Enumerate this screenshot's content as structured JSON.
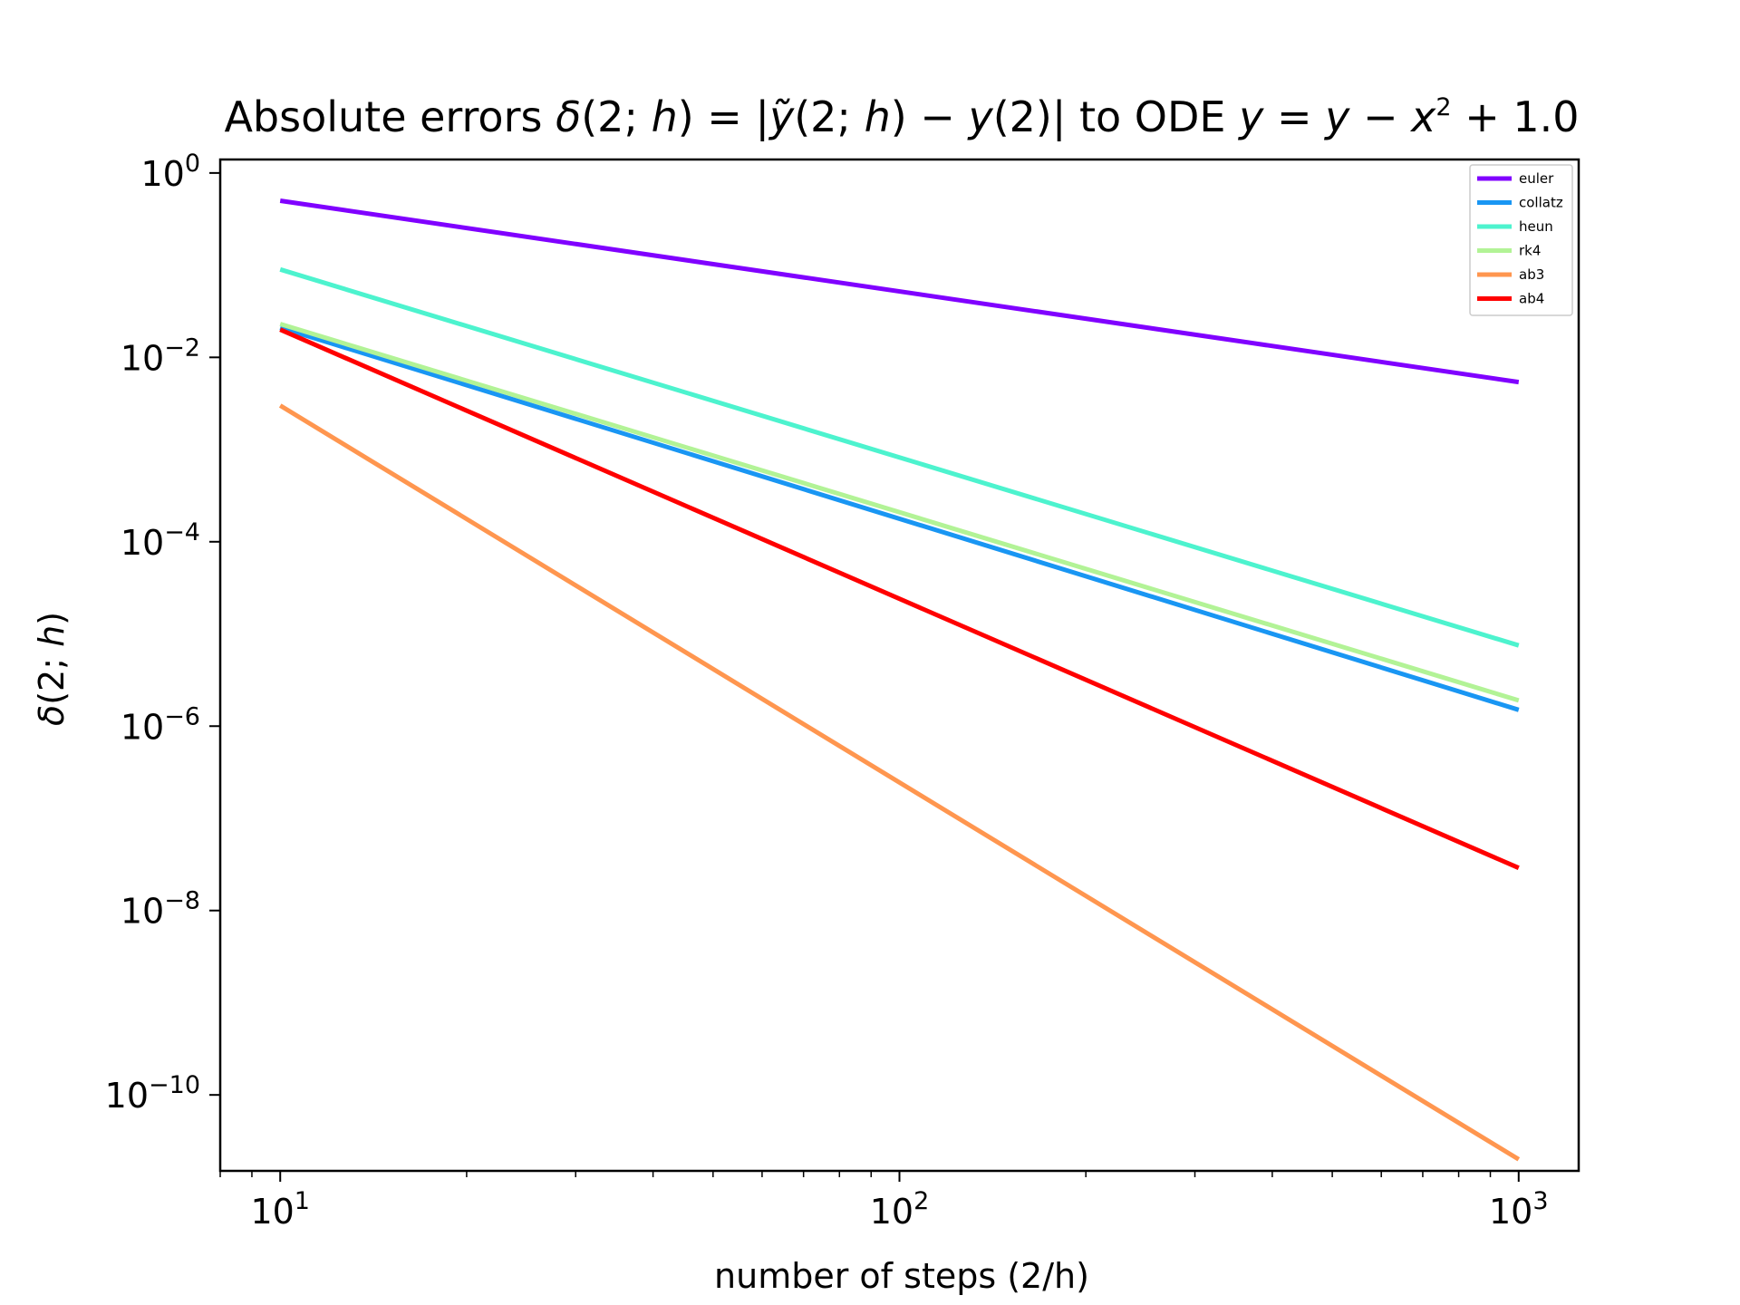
{
  "chart_data": {
    "type": "line",
    "title": {
      "prefix": "Absolute errors ",
      "delta": "δ",
      "args": "(2; ",
      "h": "h",
      "close": ")",
      "eq": " = |",
      "ytilde": "ỹ",
      "args2": "(2; ",
      "h2": "h",
      "mid": ") − ",
      "y": "y",
      "y2": "(2)| to ODE ",
      "ode_y1": "y",
      "ode_eq": " = ",
      "ode_y2": "y",
      "ode_minus": " − ",
      "ode_x": "x",
      "ode_exp": "2",
      "ode_rest": " + 1.0"
    },
    "xlabel": "number of steps (2/h)",
    "ylabel": {
      "delta": "δ",
      "open": "(2; ",
      "h": "h",
      "close": ")"
    },
    "xscale": "log",
    "yscale": "log",
    "xlim": [
      8.0,
      1250
    ],
    "ylim": [
      1.5e-11,
      1.4
    ],
    "x_ticks": [
      {
        "base": "10",
        "exp": "1",
        "value": 10
      },
      {
        "base": "10",
        "exp": "2",
        "value": 100
      },
      {
        "base": "10",
        "exp": "3",
        "value": 1000
      }
    ],
    "y_ticks": [
      {
        "base": "10",
        "exp": "0",
        "value": 1
      },
      {
        "base": "10",
        "exp": "−2",
        "value": 0.01
      },
      {
        "base": "10",
        "exp": "−4",
        "value": 0.0001
      },
      {
        "base": "10",
        "exp": "−6",
        "value": 1e-06
      },
      {
        "base": "10",
        "exp": "−8",
        "value": 1e-08
      },
      {
        "base": "10",
        "exp": "−10",
        "value": 1e-10
      }
    ],
    "grid": false,
    "legend_position": "top-right",
    "x": [
      10,
      1000
    ],
    "series": [
      {
        "name": "euler",
        "color": "#8000ff",
        "values": [
          0.5,
          0.0054
        ]
      },
      {
        "name": "collatz",
        "color": "#1996f3",
        "values": [
          0.021,
          1.5e-06
        ]
      },
      {
        "name": "heun",
        "color": "#4df3ce",
        "values": [
          0.09,
          7.5e-06
        ]
      },
      {
        "name": "rk4",
        "color": "#b2f396",
        "values": [
          0.023,
          1.9e-06
        ]
      },
      {
        "name": "ab3",
        "color": "#ff964f",
        "values": [
          0.003,
          2e-11
        ]
      },
      {
        "name": "ab4",
        "color": "#ff0000",
        "values": [
          0.02,
          2.9e-08
        ]
      }
    ]
  }
}
